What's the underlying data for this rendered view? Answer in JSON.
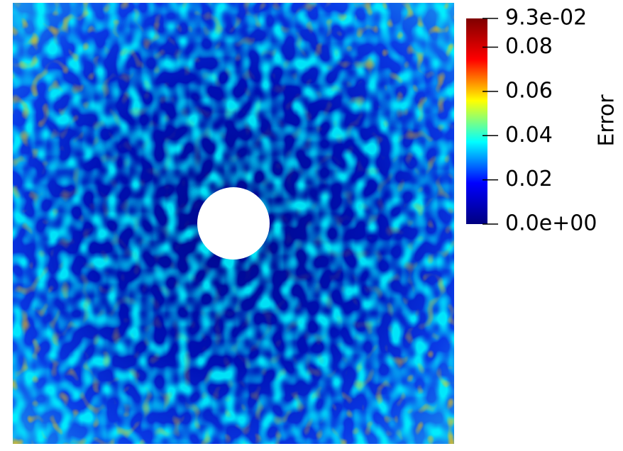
{
  "chart_data": {
    "type": "field",
    "colorbar_title": "Error",
    "zlim": [
      0,
      0.093
    ],
    "zticks": [
      {
        "value": 0.093,
        "label": "9.3e-02"
      },
      0.08,
      0.06,
      0.04,
      0.02,
      {
        "value": 0,
        "label": "0.0e+00"
      }
    ],
    "colormap": [
      "#00007f",
      "#0000ff",
      "#00ffff",
      "#ffff00",
      "#ff0000",
      "#7f0000"
    ]
  }
}
